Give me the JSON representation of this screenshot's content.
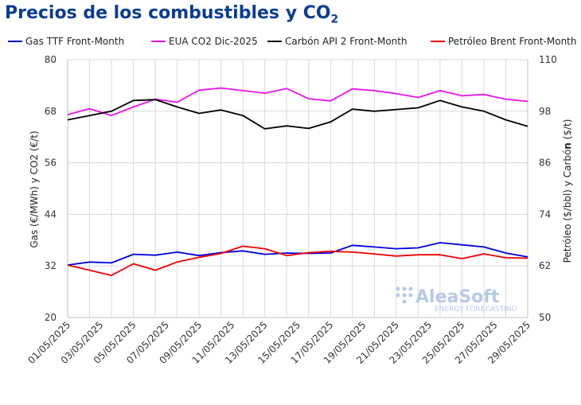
{
  "header": {
    "title": "Precios de los combustibles y CO",
    "title_sub": "2"
  },
  "chart_data": {
    "type": "line",
    "title": "Precios de los combustibles y CO2",
    "ylabel_left": "Gas (€/MWh) y CO2 (€/t)",
    "ylabel_right_prefix": "Petróleo ($/bbl) y Carbó",
    "ylabel_right_bold": "n",
    "ylabel_right_suffix": " ($/t)",
    "ylim_left": [
      20,
      80
    ],
    "ylim_right": [
      50,
      110
    ],
    "yticks_left": [
      20,
      32,
      44,
      56,
      68,
      80
    ],
    "yticks_right": [
      50,
      62,
      74,
      86,
      98,
      110
    ],
    "grid": true,
    "legend_position": "top",
    "x": [
      "01/05/2025",
      "02/05/2025",
      "05/05/2025",
      "06/05/2025",
      "07/05/2025",
      "08/05/2025",
      "09/05/2025",
      "12/05/2025",
      "13/05/2025",
      "14/05/2025",
      "15/05/2025",
      "16/05/2025",
      "19/05/2025",
      "20/05/2025",
      "21/05/2025",
      "22/05/2025",
      "23/05/2025",
      "26/05/2025",
      "27/05/2025",
      "28/05/2025",
      "29/05/2025",
      "30/05/2025"
    ],
    "xtick_labels": [
      "01/05/2025",
      "03/05/2025",
      "05/05/2025",
      "07/05/2025",
      "09/05/2025",
      "11/05/2025",
      "13/05/2025",
      "15/05/2025",
      "17/05/2025",
      "19/05/2025",
      "21/05/2025",
      "23/05/2025",
      "25/05/2025",
      "27/05/2025",
      "29/05/2025"
    ],
    "series": [
      {
        "name": "Gas TTF Front-Month",
        "axis": "left",
        "color": "#0000dd",
        "values": [
          32.2,
          32.9,
          32.7,
          34.7,
          34.5,
          35.2,
          34.4,
          35.1,
          35.5,
          34.7,
          35.0,
          34.9,
          35.0,
          36.8,
          36.4,
          36.0,
          36.2,
          37.4,
          36.9,
          36.4,
          35.0,
          34.1
        ]
      },
      {
        "name": "EUA CO2 Dic-2025",
        "axis": "left",
        "color": "#ee11ee",
        "values": [
          67.2,
          68.6,
          67.0,
          69.0,
          70.8,
          70.1,
          72.9,
          73.4,
          72.8,
          72.2,
          73.3,
          70.9,
          70.4,
          73.2,
          72.8,
          72.1,
          71.2,
          72.8,
          71.6,
          71.9,
          70.8,
          70.3
        ]
      },
      {
        "name": "Carbón API 2 Front-Month",
        "axis": "right",
        "color": "#000000",
        "values": [
          96.0,
          97.0,
          98.0,
          100.5,
          100.7,
          99.0,
          97.5,
          98.3,
          97.0,
          93.9,
          94.6,
          94.0,
          95.5,
          98.5,
          98.0,
          98.4,
          98.8,
          100.5,
          99.0,
          98.0,
          96.0,
          94.5
        ]
      },
      {
        "name": "Petróleo Brent Front-Month",
        "axis": "right",
        "color": "#ee0000",
        "values": [
          62.2,
          61.0,
          59.8,
          62.5,
          61.0,
          62.9,
          64.0,
          64.9,
          66.6,
          66.0,
          64.4,
          65.1,
          65.4,
          65.2,
          64.8,
          64.3,
          64.6,
          64.6,
          63.7,
          64.8,
          63.9,
          63.8
        ]
      }
    ]
  },
  "watermark": {
    "brand": "AleaSoft",
    "tagline": "ENERGY FORECASTING"
  }
}
